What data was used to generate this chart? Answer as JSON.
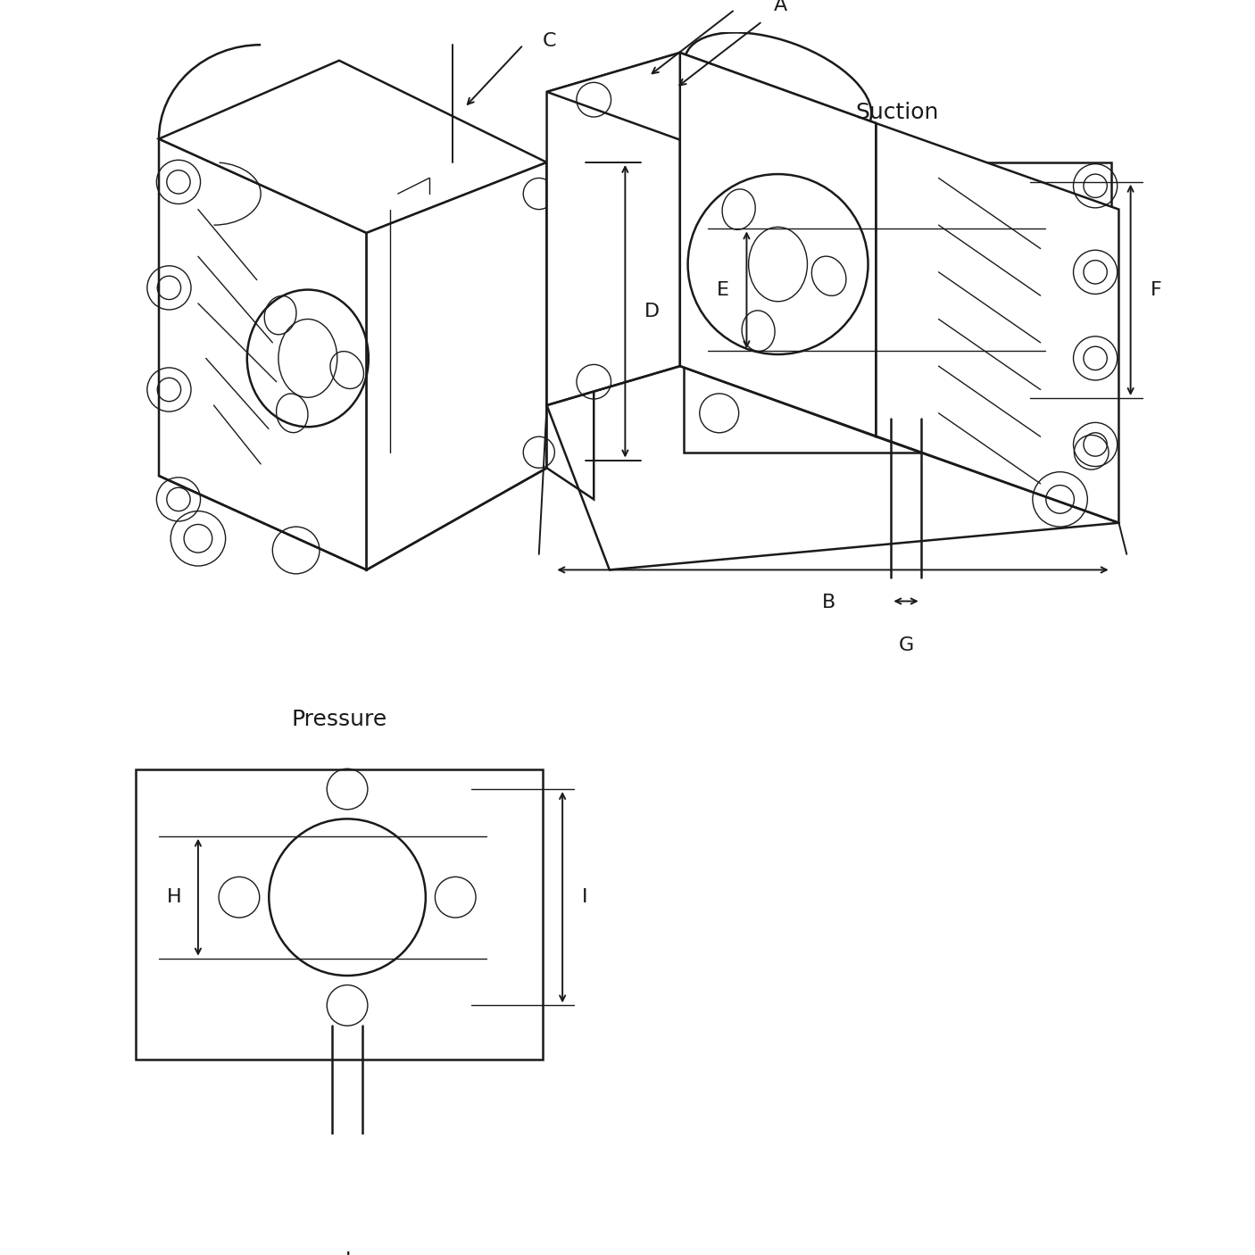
{
  "bg_color": "#ffffff",
  "line_color": "#1a1a1a",
  "title_fontsize": 15,
  "label_fontsize": 16,
  "suction_title": "Suction",
  "pressure_title": "Pressure",
  "labels": [
    "A",
    "B",
    "C",
    "D",
    "E",
    "F",
    "G",
    "H",
    "I",
    "J"
  ],
  "figsize": [
    14.06,
    14.06
  ],
  "dpi": 100
}
